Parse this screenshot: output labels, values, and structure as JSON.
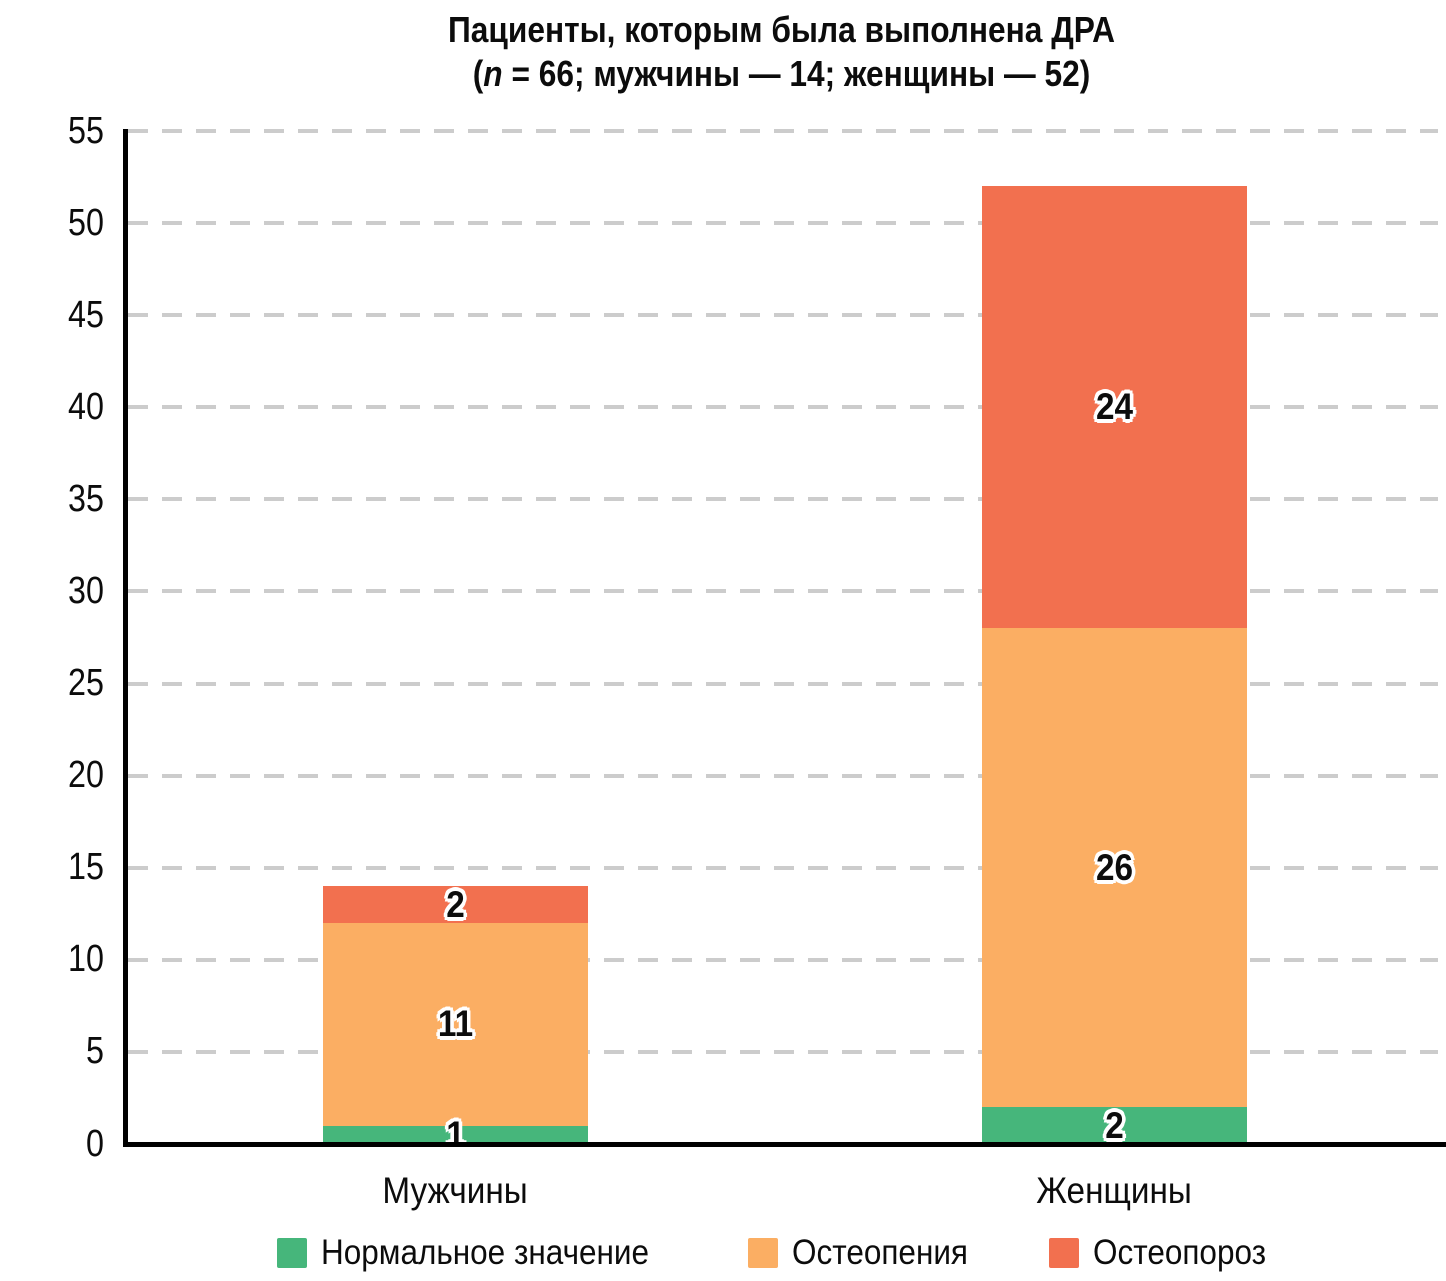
{
  "title": {
    "line1": "Пациенты, которым была выполнена ДРА",
    "line2_prefix": "(",
    "line2_var": "n",
    "line2_rest": " = 66; мужчины — 14; женщины — 52)"
  },
  "chart_data": {
    "type": "bar",
    "stacked": true,
    "title": "Пациенты, которым была выполнена ДРА (n = 66; мужчины — 14; женщины — 52)",
    "categories": [
      "Мужчины",
      "Женщины"
    ],
    "series": [
      {
        "name": "Нормальное значение",
        "color": "#46b67b",
        "values": [
          1,
          2
        ]
      },
      {
        "name": "Остеопения",
        "color": "#fbae63",
        "values": [
          11,
          26
        ]
      },
      {
        "name": "Остеопороз",
        "color": "#f2704f",
        "values": [
          2,
          24
        ]
      }
    ],
    "totals": [
      14,
      52
    ],
    "ylim": [
      0,
      55
    ],
    "ytick_step": 5,
    "yticks": [
      0,
      5,
      10,
      15,
      20,
      25,
      30,
      35,
      40,
      45,
      50,
      55
    ],
    "grid": "dashed-horizontal",
    "legend_position": "bottom",
    "bar_value_labels": true
  },
  "colors": {
    "normal": "#46b67b",
    "osteopenia": "#fbae63",
    "osteoporosis": "#f2704f",
    "gridline": "#cccccc",
    "axis": "#000000",
    "text": "#0c0c0c",
    "background": "#ffffff"
  }
}
